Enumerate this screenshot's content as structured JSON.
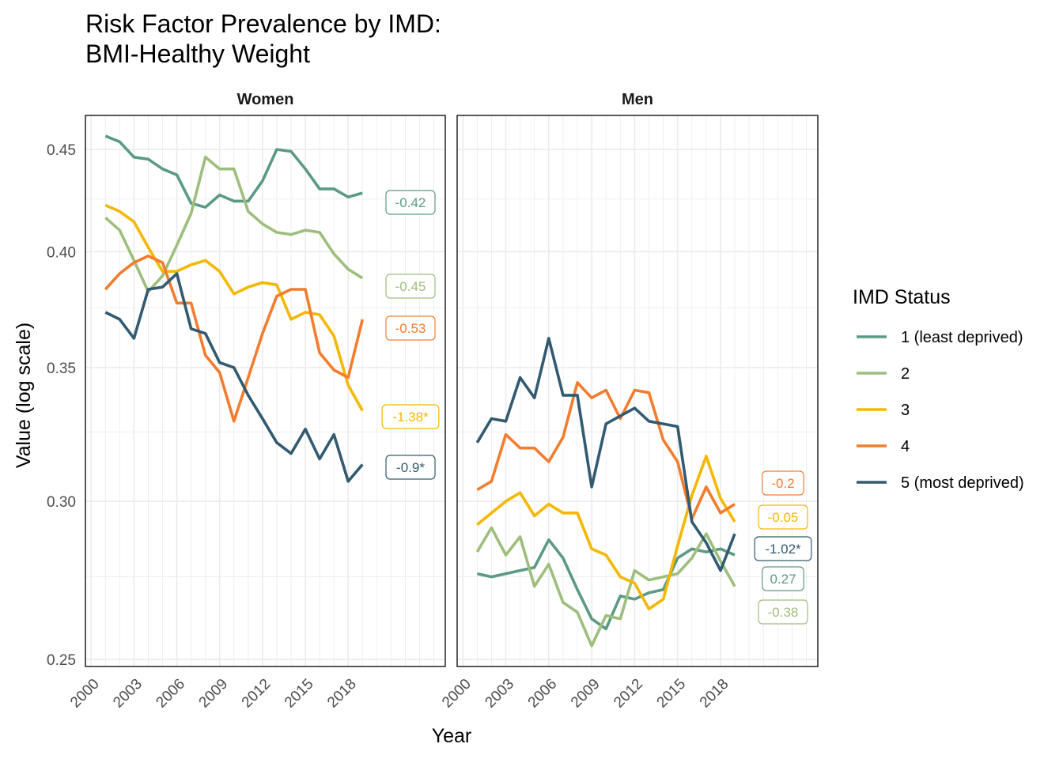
{
  "chart_data": {
    "type": "line",
    "title": "Risk Factor Prevalence by IMD:",
    "subtitle": "BMI-Healthy Weight",
    "xlabel": "Year",
    "ylabel": "Value (log scale)",
    "y_scale": "log",
    "ylim": [
      0.248,
      0.468
    ],
    "xlim": [
      1999.6,
      2024.8
    ],
    "x_ticks": [
      2000,
      2003,
      2006,
      2009,
      2012,
      2015,
      2018
    ],
    "x_tick_labels": [
      "2000",
      "2003",
      "2006",
      "2009",
      "2012",
      "2015",
      "2018"
    ],
    "y_ticks": [
      0.25,
      0.3,
      0.35,
      0.4,
      0.45
    ],
    "y_tick_labels": [
      "0.25",
      "0.30",
      "0.35",
      "0.40",
      "0.45"
    ],
    "grid": true,
    "legend": {
      "title": "IMD Status",
      "position": "right",
      "entries": [
        "1 (least deprived)",
        "2",
        "3",
        "4",
        "5 (most deprived)"
      ]
    },
    "colors": {
      "1": "#5B9A84",
      "2": "#9DBE7D",
      "3": "#F5B800",
      "4": "#F47C2E",
      "5": "#325A70"
    },
    "x": [
      2001,
      2002,
      2003,
      2004,
      2005,
      2006,
      2007,
      2008,
      2009,
      2010,
      2011,
      2012,
      2013,
      2014,
      2015,
      2016,
      2017,
      2018,
      2019
    ],
    "panels": [
      {
        "label": "Women",
        "series": [
          {
            "name": "1 (least deprived)",
            "key": "1",
            "values": [
              0.457,
              0.454,
              0.446,
              0.445,
              0.44,
              0.437,
              0.423,
              0.421,
              0.427,
              0.424,
              0.424,
              0.434,
              0.45,
              0.449,
              0.44,
              0.43,
              0.43,
              0.426,
              0.428
            ],
            "end_label": "-0.42"
          },
          {
            "name": "2",
            "key": "2",
            "values": [
              0.416,
              0.41,
              0.396,
              0.382,
              0.389,
              0.403,
              0.418,
              0.446,
              0.44,
              0.44,
              0.419,
              0.413,
              0.409,
              0.408,
              0.41,
              0.409,
              0.399,
              0.392,
              0.388
            ],
            "end_label": "-0.45"
          },
          {
            "name": "3",
            "key": "3",
            "values": [
              0.422,
              0.419,
              0.414,
              0.402,
              0.391,
              0.391,
              0.394,
              0.396,
              0.391,
              0.381,
              0.384,
              0.386,
              0.385,
              0.37,
              0.373,
              0.372,
              0.363,
              0.343,
              0.333
            ],
            "end_label": "-1.38*"
          },
          {
            "name": "4",
            "key": "4",
            "values": [
              0.383,
              0.39,
              0.395,
              0.398,
              0.395,
              0.377,
              0.377,
              0.355,
              0.348,
              0.329,
              0.346,
              0.364,
              0.38,
              0.383,
              0.383,
              0.356,
              0.349,
              0.346,
              0.37
            ],
            "end_label": "-0.53"
          },
          {
            "name": "5 (most deprived)",
            "key": "5",
            "values": [
              0.373,
              0.37,
              0.362,
              0.383,
              0.384,
              0.39,
              0.366,
              0.364,
              0.352,
              0.35,
              0.339,
              0.33,
              0.321,
              0.317,
              0.326,
              0.315,
              0.324,
              0.307,
              0.313
            ],
            "end_label": "-0.9*"
          }
        ]
      },
      {
        "label": "Men",
        "series": [
          {
            "name": "1 (least deprived)",
            "key": "1",
            "values": [
              0.276,
              0.275,
              0.276,
              0.277,
              0.278,
              0.287,
              0.281,
              0.271,
              0.262,
              0.259,
              0.269,
              0.268,
              0.27,
              0.271,
              0.281,
              0.284,
              0.283,
              0.284,
              0.282
            ],
            "end_label": "0.27"
          },
          {
            "name": "2",
            "key": "2",
            "values": [
              0.283,
              0.291,
              0.282,
              0.288,
              0.272,
              0.279,
              0.267,
              0.264,
              0.254,
              0.263,
              0.262,
              0.277,
              0.274,
              0.275,
              0.276,
              0.281,
              0.289,
              0.28,
              0.272
            ],
            "end_label": "-0.38"
          },
          {
            "name": "3",
            "key": "3",
            "values": [
              0.292,
              0.296,
              0.3,
              0.303,
              0.295,
              0.299,
              0.296,
              0.296,
              0.284,
              0.282,
              0.275,
              0.273,
              0.265,
              0.268,
              0.285,
              0.302,
              0.316,
              0.301,
              0.293
            ],
            "end_label": "-0.05"
          },
          {
            "name": "4",
            "key": "4",
            "values": [
              0.304,
              0.307,
              0.324,
              0.319,
              0.319,
              0.314,
              0.323,
              0.344,
              0.338,
              0.341,
              0.33,
              0.341,
              0.34,
              0.322,
              0.314,
              0.294,
              0.305,
              0.296,
              0.299
            ],
            "end_label": "-0.2"
          },
          {
            "name": "5 (most deprived)",
            "key": "5",
            "values": [
              0.321,
              0.33,
              0.329,
              0.346,
              0.338,
              0.362,
              0.339,
              0.339,
              0.305,
              0.328,
              0.331,
              0.334,
              0.329,
              0.328,
              0.327,
              0.293,
              0.286,
              0.277,
              0.289
            ],
            "end_label": "-1.02*"
          }
        ]
      }
    ]
  }
}
